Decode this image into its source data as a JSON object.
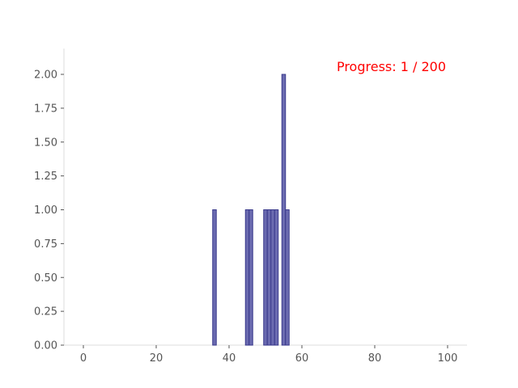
{
  "chart_data": {
    "type": "bar",
    "title": "",
    "xlabel": "",
    "ylabel": "",
    "xlim": [
      0,
      100
    ],
    "ylim": [
      0,
      2.0
    ],
    "xticks": [
      0,
      20,
      40,
      60,
      80,
      100
    ],
    "xtick_labels": [
      "0",
      "20",
      "40",
      "60",
      "80",
      "100"
    ],
    "yticks": [
      0.0,
      0.25,
      0.5,
      0.75,
      1.0,
      1.25,
      1.5,
      1.75,
      2.0
    ],
    "ytick_labels": [
      "0.00",
      "0.25",
      "0.50",
      "0.75",
      "1.00",
      "1.25",
      "1.50",
      "1.75",
      "2.00"
    ],
    "bin_width": 1,
    "bars": [
      {
        "x": 36,
        "value": 1
      },
      {
        "x": 45,
        "value": 1
      },
      {
        "x": 46,
        "value": 1
      },
      {
        "x": 50,
        "value": 1
      },
      {
        "x": 51,
        "value": 1
      },
      {
        "x": 52,
        "value": 1
      },
      {
        "x": 53,
        "value": 1
      },
      {
        "x": 55,
        "value": 2
      },
      {
        "x": 56,
        "value": 1
      }
    ],
    "grid": false,
    "annotation": {
      "text": "Progress: 1 / 200",
      "color": "#ff0000",
      "position": "top-right"
    },
    "bar_color": "#6b6bb0",
    "bar_edge_color": "#3a3a8c",
    "axis_color": "#dddddd"
  }
}
